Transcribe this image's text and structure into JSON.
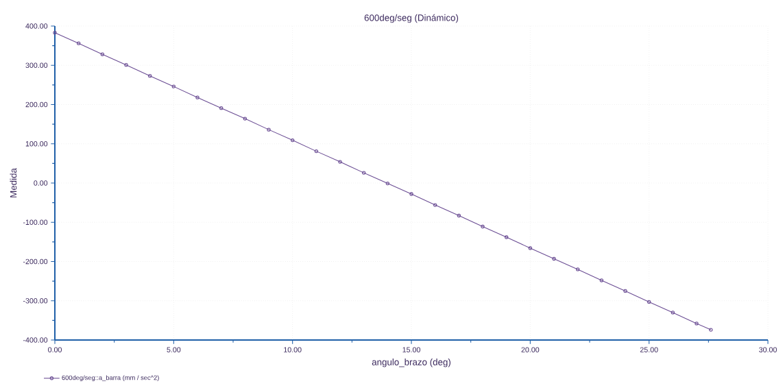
{
  "chart_data": {
    "type": "line",
    "title": "600deg/seg (Dinámico)",
    "xlabel": "angulo_brazo (deg)",
    "ylabel": "Medida",
    "x": [
      0,
      1,
      2,
      3,
      4,
      5,
      6,
      7,
      8,
      9,
      10,
      11,
      12,
      13,
      14,
      15,
      16,
      17,
      18,
      19,
      20,
      21,
      22,
      23,
      24,
      25,
      26,
      27,
      27.6
    ],
    "series": [
      {
        "name": "600deg/seg::a_barra (mm / sec^2)",
        "color": "#6a4c93",
        "values": [
          383,
          356,
          328,
          301,
          273,
          246,
          218,
          191,
          164,
          136,
          109,
          81,
          54,
          26,
          -1,
          -28,
          -56,
          -83,
          -111,
          -138,
          -166,
          -193,
          -220,
          -248,
          -275,
          -303,
          -330,
          -358,
          -374
        ]
      }
    ],
    "xlim": [
      0,
      30
    ],
    "ylim": [
      -400,
      400
    ],
    "xticks": [
      {
        "value": 0,
        "label": "0.00"
      },
      {
        "value": 5,
        "label": "5.00"
      },
      {
        "value": 10,
        "label": "10.00"
      },
      {
        "value": 15,
        "label": "15.00"
      },
      {
        "value": 20,
        "label": "20.00"
      },
      {
        "value": 25,
        "label": "25.00"
      },
      {
        "value": 30,
        "label": "30.00"
      }
    ],
    "yticks": [
      {
        "value": -400,
        "label": "-400.00"
      },
      {
        "value": -300,
        "label": "-300.00"
      },
      {
        "value": -200,
        "label": "-200.00"
      },
      {
        "value": -100,
        "label": "-100.00"
      },
      {
        "value": 0,
        "label": "0.00"
      },
      {
        "value": 100,
        "label": "100.00"
      },
      {
        "value": 200,
        "label": "200.00"
      },
      {
        "value": 300,
        "label": "300.00"
      },
      {
        "value": 400,
        "label": "400.00"
      }
    ],
    "grid": true,
    "legend": "bottom left",
    "marker": "circle",
    "line_style": "solid"
  }
}
